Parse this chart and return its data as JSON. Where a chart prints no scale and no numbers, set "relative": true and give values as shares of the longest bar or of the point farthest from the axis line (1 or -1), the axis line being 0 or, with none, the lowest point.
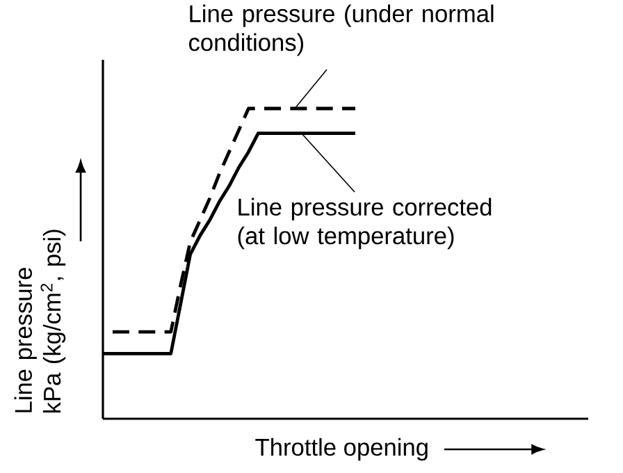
{
  "chart_data": {
    "type": "line",
    "relative": true,
    "xlabel": "Throttle opening",
    "ylabel": "Line pressure kPa (kg/cm$^{2}$, psi)",
    "categories": [
      null,
      null,
      null,
      null,
      null,
      null,
      null,
      null,
      null,
      null,
      null,
      null,
      null,
      null,
      null,
      null,
      null,
      null,
      null,
      null,
      null,
      null,
      null,
      null,
      null,
      null,
      null
    ],
    "series": [
      {
        "color": "#000000",
        "line_style": "dashed",
        "values": [
          null,
          0.28,
          0.28,
          0.28,
          0.28,
          0.28,
          0.28,
          0.28,
          0.43,
          0.57,
          0.64,
          0.71,
          0.79,
          0.86,
          0.93,
          1,
          1,
          1,
          1,
          1,
          1,
          1,
          1,
          1,
          1,
          1,
          1
        ]
      },
      {
        "color": "#000000",
        "line_style": "solid",
        "values": [
          0.21,
          0.21,
          0.21,
          0.21,
          0.21,
          0.21,
          0.21,
          0.21,
          0.37,
          0.53,
          0.59,
          0.64,
          0.7,
          0.75,
          0.81,
          0.86,
          0.92,
          0.92,
          0.92,
          0.92,
          0.92,
          0.92,
          0.92,
          0.92,
          0.92,
          0.92,
          0.92
        ]
      }
    ],
    "annotations": [
      {
        "text": "Line pressure (under normal conditions)",
        "y": 1
      },
      "Line pressure corrected (at low temperature)"
    ]
  }
}
